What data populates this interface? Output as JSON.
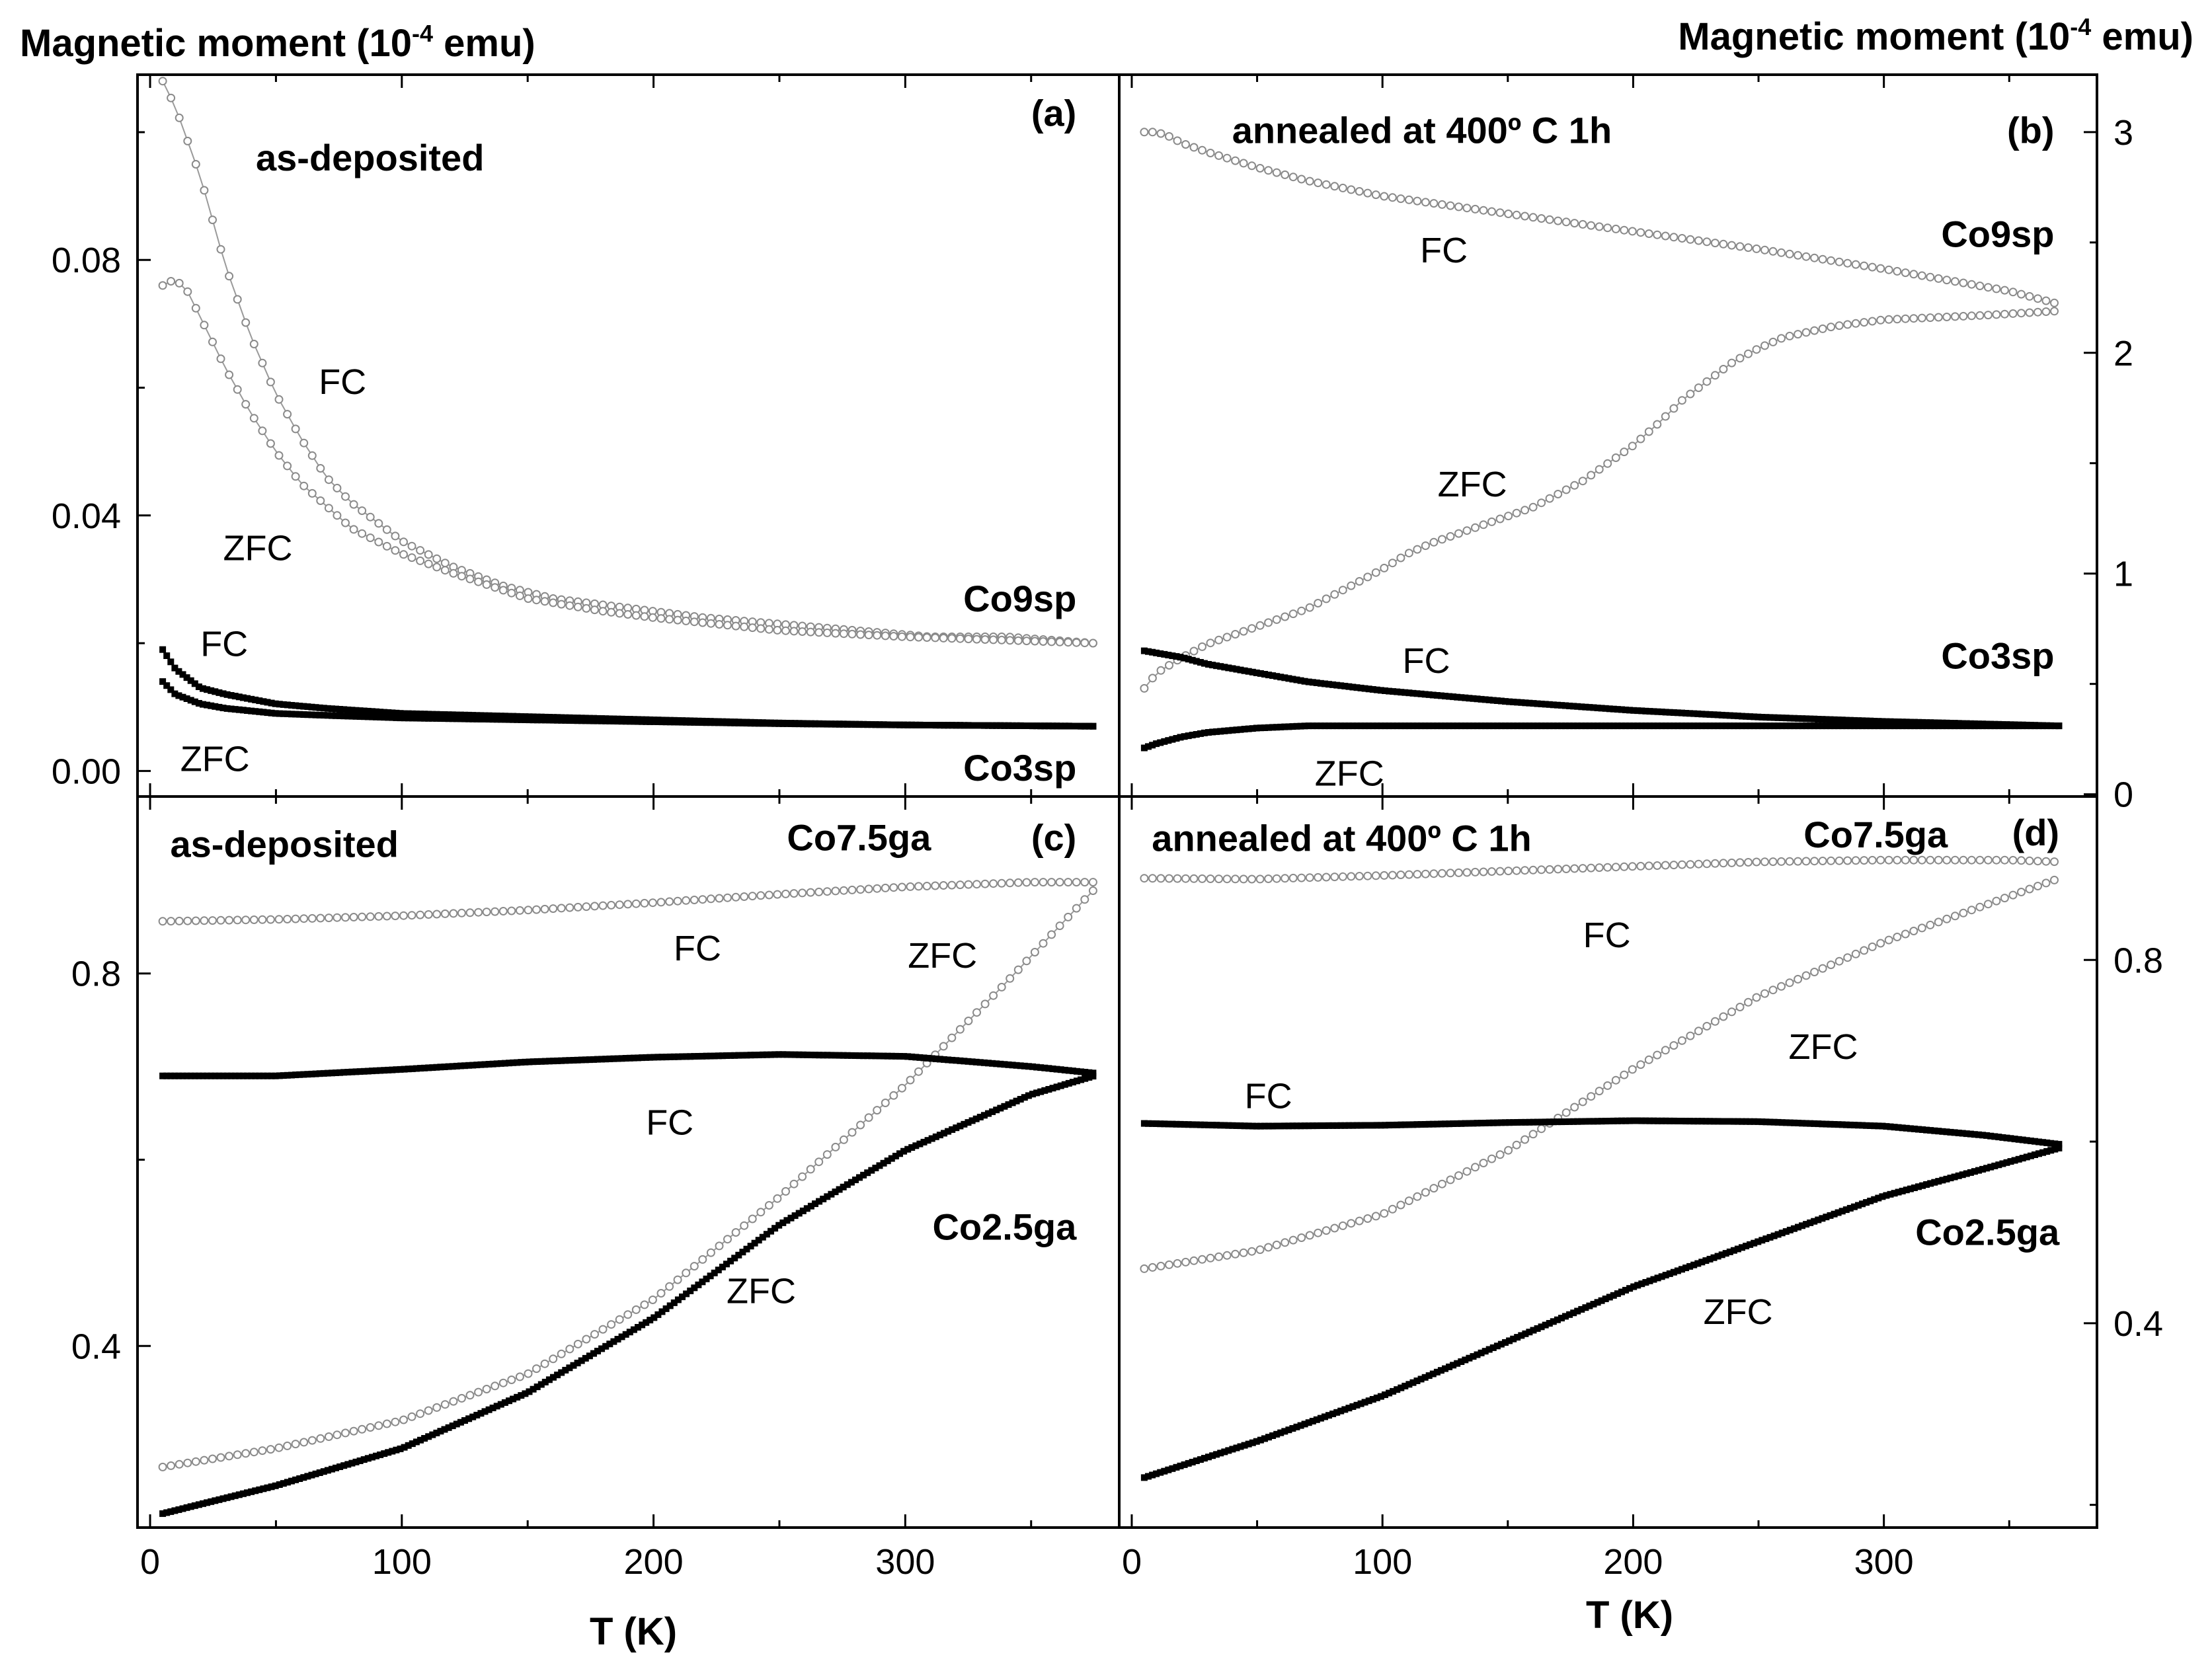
{
  "figure": {
    "ylabel_left": "Magnetic moment (10",
    "ylabel_right": "Magnetic moment (10",
    "ylabel_exp": "-4",
    "ylabel_unit": " emu)",
    "xlabel": "T (K)"
  },
  "chart_data": [
    {
      "type": "line",
      "panel": "(a)",
      "title": "as-deposited",
      "xlabel": "T (K)",
      "ylabel": "Magnetic moment (10-4 emu)",
      "xlim": [
        -5,
        385
      ],
      "ylim": [
        -0.004,
        0.109
      ],
      "xticks": [
        0,
        100,
        200,
        300
      ],
      "yticks": [
        0.0,
        0.04,
        0.08
      ],
      "ytick_labels": [
        "0.00",
        "0.04",
        "0.08"
      ],
      "show_xtick_labels": false,
      "yaxis_side": "left",
      "series": [
        {
          "name": "Co9sp FC",
          "style": "open",
          "x": [
            5,
            10,
            20,
            30,
            40,
            50,
            60,
            70,
            80,
            90,
            100,
            120,
            140,
            160,
            180,
            200,
            220,
            250,
            280,
            310,
            340,
            375
          ],
          "y": [
            0.108,
            0.104,
            0.093,
            0.079,
            0.068,
            0.059,
            0.052,
            0.046,
            0.042,
            0.039,
            0.036,
            0.032,
            0.029,
            0.027,
            0.026,
            0.025,
            0.024,
            0.023,
            0.022,
            0.021,
            0.021,
            0.02
          ]
        },
        {
          "name": "Co9sp ZFC",
          "style": "open",
          "x": [
            5,
            10,
            15,
            20,
            30,
            40,
            50,
            60,
            80,
            100,
            120,
            150,
            180,
            200,
            250,
            300,
            375
          ],
          "y": [
            0.076,
            0.077,
            0.075,
            0.071,
            0.063,
            0.056,
            0.05,
            0.045,
            0.038,
            0.034,
            0.031,
            0.027,
            0.025,
            0.024,
            0.022,
            0.021,
            0.02
          ]
        },
        {
          "name": "Co3sp FC",
          "style": "filled",
          "x": [
            5,
            10,
            20,
            30,
            50,
            70,
            100,
            150,
            200,
            250,
            300,
            375
          ],
          "y": [
            0.019,
            0.016,
            0.013,
            0.012,
            0.0105,
            0.0098,
            0.009,
            0.0085,
            0.008,
            0.0075,
            0.0072,
            0.007
          ]
        },
        {
          "name": "Co3sp ZFC",
          "style": "filled",
          "x": [
            5,
            10,
            20,
            30,
            50,
            70,
            100,
            150,
            200,
            250,
            300,
            375
          ],
          "y": [
            0.014,
            0.012,
            0.0105,
            0.0098,
            0.009,
            0.0087,
            0.0083,
            0.008,
            0.0077,
            0.0074,
            0.0072,
            0.007
          ]
        }
      ],
      "annotations": [
        {
          "text": "(a)",
          "x": 368,
          "y": 0.101,
          "bold": true,
          "anchor": "end"
        },
        {
          "text": "as-deposited",
          "x": 42,
          "y": 0.094,
          "bold": true,
          "anchor": "start"
        },
        {
          "text": "FC",
          "x": 67,
          "y": 0.059,
          "bold": false,
          "anchor": "start"
        },
        {
          "text": "ZFC",
          "x": 29,
          "y": 0.033,
          "bold": false,
          "anchor": "start"
        },
        {
          "text": "FC",
          "x": 20,
          "y": 0.018,
          "bold": false,
          "anchor": "start"
        },
        {
          "text": "ZFC",
          "x": 12,
          "y": 0.0,
          "bold": false,
          "anchor": "start"
        },
        {
          "text": "Co9sp",
          "x": 368,
          "y": 0.025,
          "bold": true,
          "anchor": "end"
        },
        {
          "text": "Co3sp",
          "x": 368,
          "y": -0.0015,
          "bold": true,
          "anchor": "end"
        }
      ]
    },
    {
      "type": "line",
      "panel": "(b)",
      "title": "annealed at 400º C 1h",
      "xlabel": "T (K)",
      "ylabel": "Magnetic moment (10-4 emu)",
      "xlim": [
        -5,
        385
      ],
      "ylim": [
        -0.01,
        3.26
      ],
      "xticks": [
        0,
        100,
        200,
        300
      ],
      "yticks": [
        0,
        1,
        2,
        3
      ],
      "ytick_labels": [
        "0",
        "1",
        "2",
        "3"
      ],
      "show_xtick_labels": false,
      "yaxis_side": "right",
      "series": [
        {
          "name": "Co9sp FC",
          "style": "open",
          "x": [
            5,
            10,
            15,
            20,
            30,
            50,
            70,
            100,
            150,
            200,
            250,
            300,
            350,
            370
          ],
          "y": [
            3.0,
            3.0,
            2.98,
            2.95,
            2.91,
            2.84,
            2.78,
            2.71,
            2.63,
            2.55,
            2.47,
            2.38,
            2.28,
            2.22
          ]
        },
        {
          "name": "Co9sp ZFC",
          "style": "open",
          "x": [
            5,
            10,
            20,
            30,
            50,
            70,
            90,
            100,
            110,
            120,
            140,
            160,
            180,
            200,
            210,
            220,
            240,
            250,
            260,
            280,
            300,
            340,
            370
          ],
          "y": [
            0.48,
            0.55,
            0.62,
            0.68,
            0.76,
            0.84,
            0.96,
            1.02,
            1.09,
            1.14,
            1.22,
            1.3,
            1.42,
            1.58,
            1.68,
            1.79,
            1.96,
            2.02,
            2.07,
            2.12,
            2.15,
            2.17,
            2.19
          ]
        },
        {
          "name": "Co3sp FC",
          "style": "filled",
          "x": [
            5,
            10,
            20,
            30,
            50,
            70,
            100,
            150,
            200,
            250,
            300,
            370
          ],
          "y": [
            0.65,
            0.64,
            0.62,
            0.59,
            0.55,
            0.51,
            0.47,
            0.42,
            0.38,
            0.35,
            0.33,
            0.31
          ]
        },
        {
          "name": "Co3sp ZFC",
          "style": "filled",
          "x": [
            5,
            10,
            20,
            30,
            50,
            70,
            100,
            150,
            200,
            250,
            300,
            370
          ],
          "y": [
            0.21,
            0.23,
            0.26,
            0.28,
            0.3,
            0.31,
            0.31,
            0.31,
            0.31,
            0.31,
            0.31,
            0.31
          ]
        }
      ],
      "annotations": [
        {
          "text": "(b)",
          "x": 368,
          "y": 2.95,
          "bold": true,
          "anchor": "end"
        },
        {
          "text": "annealed at 400º C 1h",
          "x": 40,
          "y": 2.95,
          "bold": true,
          "anchor": "start"
        },
        {
          "text": "FC",
          "x": 115,
          "y": 2.41,
          "bold": false,
          "anchor": "start"
        },
        {
          "text": "Co9sp",
          "x": 368,
          "y": 2.48,
          "bold": true,
          "anchor": "end"
        },
        {
          "text": "ZFC",
          "x": 122,
          "y": 1.35,
          "bold": false,
          "anchor": "start"
        },
        {
          "text": "FC",
          "x": 108,
          "y": 0.55,
          "bold": false,
          "anchor": "start"
        },
        {
          "text": "Co3sp",
          "x": 368,
          "y": 0.57,
          "bold": true,
          "anchor": "end"
        },
        {
          "text": "ZFC",
          "x": 73,
          "y": 0.04,
          "bold": false,
          "anchor": "start"
        }
      ]
    },
    {
      "type": "line",
      "panel": "(c)",
      "title": "as-deposited",
      "xlabel": "T (K)",
      "ylabel": "Magnetic moment (10-4 emu)",
      "xlim": [
        -5,
        385
      ],
      "ylim": [
        0.205,
        0.99
      ],
      "xticks": [
        0,
        100,
        200,
        300
      ],
      "yticks": [
        0.4,
        0.8
      ],
      "ytick_labels": [
        "0.4",
        "0.8"
      ],
      "show_xtick_labels": true,
      "xtick_labels": [
        "0",
        "100",
        "200",
        "300"
      ],
      "yaxis_side": "left",
      "series": [
        {
          "name": "Co7.5ga FC",
          "style": "open",
          "x": [
            5,
            50,
            100,
            150,
            200,
            250,
            300,
            350,
            375
          ],
          "y": [
            0.856,
            0.858,
            0.862,
            0.868,
            0.876,
            0.885,
            0.893,
            0.898,
            0.898
          ]
        },
        {
          "name": "Co7.5ga ZFC",
          "style": "open",
          "x": [
            5,
            50,
            100,
            150,
            200,
            250,
            300,
            340,
            375
          ],
          "y": [
            0.27,
            0.29,
            0.32,
            0.37,
            0.45,
            0.56,
            0.68,
            0.79,
            0.89
          ]
        },
        {
          "name": "Co2.5ga FC",
          "style": "filled",
          "x": [
            5,
            50,
            100,
            150,
            200,
            250,
            300,
            350,
            375
          ],
          "y": [
            0.69,
            0.69,
            0.697,
            0.705,
            0.71,
            0.713,
            0.711,
            0.7,
            0.693
          ]
        },
        {
          "name": "Co2.5ga ZFC",
          "style": "filled",
          "x": [
            5,
            50,
            100,
            150,
            200,
            250,
            300,
            350,
            375
          ],
          "y": [
            0.22,
            0.25,
            0.29,
            0.35,
            0.43,
            0.53,
            0.61,
            0.67,
            0.69
          ]
        }
      ],
      "annotations": [
        {
          "text": "as-deposited",
          "x": 8,
          "y": 0.925,
          "bold": true,
          "anchor": "start"
        },
        {
          "text": "Co7.5ga",
          "x": 253,
          "y": 0.932,
          "bold": true,
          "anchor": "start"
        },
        {
          "text": "(c)",
          "x": 368,
          "y": 0.932,
          "bold": true,
          "anchor": "end"
        },
        {
          "text": "FC",
          "x": 208,
          "y": 0.814,
          "bold": false,
          "anchor": "start"
        },
        {
          "text": "ZFC",
          "x": 301,
          "y": 0.806,
          "bold": false,
          "anchor": "start"
        },
        {
          "text": "FC",
          "x": 197,
          "y": 0.627,
          "bold": false,
          "anchor": "start"
        },
        {
          "text": "Co2.5ga",
          "x": 368,
          "y": 0.514,
          "bold": true,
          "anchor": "end"
        },
        {
          "text": "ZFC",
          "x": 229,
          "y": 0.446,
          "bold": false,
          "anchor": "start"
        }
      ]
    },
    {
      "type": "line",
      "panel": "(d)",
      "title": "annealed at 400º C 1h",
      "xlabel": "T (K)",
      "ylabel": "Magnetic moment (10-4 emu)",
      "xlim": [
        -5,
        385
      ],
      "ylim": [
        0.175,
        0.98
      ],
      "xticks": [
        0,
        100,
        200,
        300
      ],
      "yticks": [
        0.4,
        0.8
      ],
      "ytick_labels": [
        "0.4",
        "0.8"
      ],
      "show_xtick_labels": true,
      "xtick_labels": [
        "0",
        "100",
        "200",
        "300"
      ],
      "yaxis_side": "right",
      "series": [
        {
          "name": "Co7.5ga FC",
          "style": "open",
          "x": [
            5,
            50,
            100,
            150,
            200,
            250,
            300,
            350,
            370
          ],
          "y": [
            0.89,
            0.889,
            0.893,
            0.898,
            0.903,
            0.908,
            0.91,
            0.91,
            0.908
          ]
        },
        {
          "name": "Co7.5ga ZFC",
          "style": "open",
          "x": [
            5,
            50,
            100,
            150,
            200,
            250,
            300,
            340,
            370
          ],
          "y": [
            0.46,
            0.48,
            0.52,
            0.59,
            0.68,
            0.76,
            0.82,
            0.86,
            0.89
          ]
        },
        {
          "name": "Co2.5ga FC",
          "style": "filled",
          "x": [
            5,
            50,
            100,
            150,
            200,
            250,
            300,
            340,
            370
          ],
          "y": [
            0.62,
            0.617,
            0.618,
            0.621,
            0.623,
            0.622,
            0.617,
            0.607,
            0.597
          ]
        },
        {
          "name": "Co2.5ga ZFC",
          "style": "filled",
          "x": [
            5,
            50,
            100,
            150,
            200,
            250,
            300,
            340,
            370
          ],
          "y": [
            0.23,
            0.27,
            0.32,
            0.38,
            0.44,
            0.49,
            0.54,
            0.57,
            0.593
          ]
        }
      ],
      "annotations": [
        {
          "text": "annealed at 400º C 1h",
          "x": 8,
          "y": 0.92,
          "bold": true,
          "anchor": "start"
        },
        {
          "text": "Co7.5ga",
          "x": 268,
          "y": 0.924,
          "bold": true,
          "anchor": "start"
        },
        {
          "text": "(d)",
          "x": 370,
          "y": 0.926,
          "bold": true,
          "anchor": "end"
        },
        {
          "text": "FC",
          "x": 180,
          "y": 0.814,
          "bold": false,
          "anchor": "start"
        },
        {
          "text": "ZFC",
          "x": 262,
          "y": 0.691,
          "bold": false,
          "anchor": "start"
        },
        {
          "text": "FC",
          "x": 45,
          "y": 0.637,
          "bold": false,
          "anchor": "start"
        },
        {
          "text": "Co2.5ga",
          "x": 370,
          "y": 0.486,
          "bold": true,
          "anchor": "end"
        },
        {
          "text": "ZFC",
          "x": 228,
          "y": 0.399,
          "bold": false,
          "anchor": "start"
        }
      ]
    }
  ]
}
